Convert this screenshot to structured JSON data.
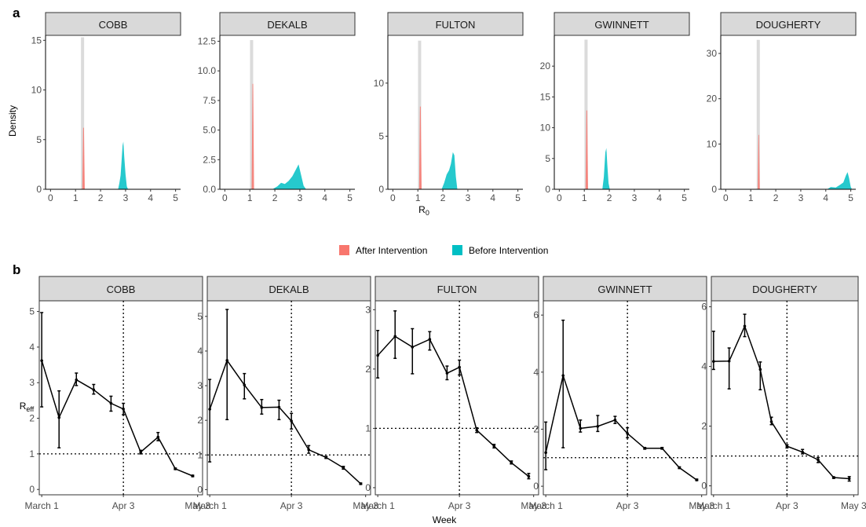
{
  "figure": {
    "panel_a_label": "a",
    "panel_b_label": "b",
    "legend": [
      {
        "label": "After Intervention",
        "color": "#F8766D"
      },
      {
        "label": "Before Intervention",
        "color": "#00BFC4"
      }
    ]
  },
  "chart_data": [
    {
      "type": "area",
      "panel": "a",
      "ylabel": "Density",
      "xlabel": "R0",
      "xlim": [
        -0.2,
        5.2
      ],
      "xticks": [
        0,
        1,
        2,
        3,
        4,
        5
      ],
      "series_names": [
        "After Intervention",
        "Before Intervention"
      ],
      "facets": [
        {
          "name": "COBB",
          "ylim": [
            0,
            15.5
          ],
          "yticks": [
            0,
            5,
            10,
            15
          ],
          "after": {
            "peak_x": 1.32,
            "peak_y": 6.2,
            "half_width": 0.05
          },
          "gray": {
            "peak_x": 1.28,
            "peak_y": 15.3
          },
          "before": [
            [
              2.7,
              0
            ],
            [
              2.75,
              0.6
            ],
            [
              2.8,
              1.4
            ],
            [
              2.84,
              2.8
            ],
            [
              2.88,
              4.4
            ],
            [
              2.91,
              4.8
            ],
            [
              2.95,
              3.2
            ],
            [
              3.0,
              1.5
            ],
            [
              3.05,
              0.3
            ],
            [
              3.1,
              0
            ]
          ]
        },
        {
          "name": "DEKALB",
          "ylim": [
            0,
            13
          ],
          "yticks": [
            0,
            2.5,
            5.0,
            7.5,
            10.0,
            12.5
          ],
          "after": {
            "peak_x": 1.12,
            "peak_y": 8.9,
            "half_width": 0.05
          },
          "gray": {
            "peak_x": 1.07,
            "peak_y": 12.6
          },
          "before": [
            [
              1.9,
              0
            ],
            [
              2.1,
              0.25
            ],
            [
              2.25,
              0.55
            ],
            [
              2.4,
              0.45
            ],
            [
              2.55,
              0.7
            ],
            [
              2.7,
              1.1
            ],
            [
              2.85,
              1.7
            ],
            [
              2.95,
              2.1
            ],
            [
              3.05,
              1.2
            ],
            [
              3.15,
              0.3
            ],
            [
              3.25,
              0
            ]
          ]
        },
        {
          "name": "FULTON",
          "ylim": [
            0,
            14.5
          ],
          "yticks": [
            0,
            5,
            10
          ],
          "after": {
            "peak_x": 1.1,
            "peak_y": 7.8,
            "half_width": 0.05
          },
          "gray": {
            "peak_x": 1.07,
            "peak_y": 14.0
          },
          "before": [
            [
              1.95,
              0
            ],
            [
              2.05,
              0.6
            ],
            [
              2.15,
              1.4
            ],
            [
              2.25,
              1.8
            ],
            [
              2.32,
              2.4
            ],
            [
              2.4,
              3.5
            ],
            [
              2.46,
              3.2
            ],
            [
              2.52,
              1.2
            ],
            [
              2.58,
              0
            ]
          ]
        },
        {
          "name": "GWINNETT",
          "ylim": [
            0,
            25
          ],
          "yticks": [
            0,
            5,
            10,
            15,
            20
          ],
          "after": {
            "peak_x": 1.1,
            "peak_y": 12.8,
            "half_width": 0.05
          },
          "gray": {
            "peak_x": 1.07,
            "peak_y": 24.3
          },
          "before": [
            [
              1.72,
              0
            ],
            [
              1.78,
              2.0
            ],
            [
              1.84,
              6.0
            ],
            [
              1.88,
              6.7
            ],
            [
              1.92,
              4.0
            ],
            [
              1.97,
              1.0
            ],
            [
              2.02,
              0
            ]
          ]
        },
        {
          "name": "DOUGHERTY",
          "ylim": [
            0,
            34
          ],
          "yticks": [
            0,
            10,
            20,
            30
          ],
          "after": {
            "peak_x": 1.32,
            "peak_y": 12.0,
            "half_width": 0.04
          },
          "gray": {
            "peak_x": 1.3,
            "peak_y": 33.0
          },
          "before": [
            [
              4.05,
              0
            ],
            [
              4.2,
              0.5
            ],
            [
              4.4,
              0.4
            ],
            [
              4.55,
              0.9
            ],
            [
              4.7,
              1.5
            ],
            [
              4.8,
              3.0
            ],
            [
              4.87,
              3.8
            ],
            [
              4.93,
              2.5
            ],
            [
              5.0,
              0.5
            ],
            [
              5.05,
              0
            ]
          ]
        }
      ]
    },
    {
      "type": "line",
      "panel": "b",
      "ylabel": "Reff",
      "xlabel": "Week",
      "xtick_labels": [
        "March 1",
        "Apr 3",
        "May 3"
      ],
      "xlim": [
        -1,
        65
      ],
      "xtick_positions": [
        0,
        33,
        63
      ],
      "vline": "Apr 3",
      "hline": 1,
      "facets": [
        {
          "name": "COBB",
          "ylim": [
            -0.15,
            5.3
          ],
          "yticks": [
            0,
            1,
            2,
            3,
            4,
            5
          ],
          "points": [
            {
              "x": 0,
              "y": 3.62,
              "lo": 2.32,
              "hi": 4.97
            },
            {
              "x": 7,
              "y": 2.02,
              "lo": 1.17,
              "hi": 2.77
            },
            {
              "x": 14,
              "y": 3.08,
              "lo": 2.92,
              "hi": 3.27
            },
            {
              "x": 21,
              "y": 2.8,
              "lo": 2.68,
              "hi": 2.95
            },
            {
              "x": 28,
              "y": 2.42,
              "lo": 2.2,
              "hi": 2.62
            },
            {
              "x": 33,
              "y": 2.26,
              "lo": 2.1,
              "hi": 2.42
            },
            {
              "x": 40,
              "y": 1.05,
              "lo": 1.0,
              "hi": 1.1
            },
            {
              "x": 47,
              "y": 1.47,
              "lo": 1.37,
              "hi": 1.6
            },
            {
              "x": 54,
              "y": 0.58,
              "lo": 0.56,
              "hi": 0.6
            },
            {
              "x": 61,
              "y": 0.38,
              "lo": 0.36,
              "hi": 0.4
            }
          ]
        },
        {
          "name": "DEKALB",
          "ylim": [
            -0.15,
            5.45
          ],
          "yticks": [
            0,
            1,
            2,
            3,
            4,
            5
          ],
          "points": [
            {
              "x": 0,
              "y": 2.32,
              "lo": 0.8,
              "hi": 3.18
            },
            {
              "x": 7,
              "y": 3.73,
              "lo": 2.02,
              "hi": 5.2
            },
            {
              "x": 14,
              "y": 3.02,
              "lo": 2.62,
              "hi": 3.35
            },
            {
              "x": 21,
              "y": 2.37,
              "lo": 2.18,
              "hi": 2.6
            },
            {
              "x": 28,
              "y": 2.38,
              "lo": 2.02,
              "hi": 2.58
            },
            {
              "x": 33,
              "y": 1.98,
              "lo": 1.75,
              "hi": 2.2
            },
            {
              "x": 40,
              "y": 1.15,
              "lo": 1.05,
              "hi": 1.27
            },
            {
              "x": 47,
              "y": 0.93,
              "lo": 0.9,
              "hi": 0.96
            },
            {
              "x": 54,
              "y": 0.63,
              "lo": 0.59,
              "hi": 0.67
            },
            {
              "x": 61,
              "y": 0.17,
              "lo": 0.15,
              "hi": 0.19
            }
          ]
        },
        {
          "name": "FULTON",
          "ylim": [
            -0.12,
            3.15
          ],
          "yticks": [
            0,
            1,
            2,
            3
          ],
          "points": [
            {
              "x": 0,
              "y": 2.23,
              "lo": 1.85,
              "hi": 2.65
            },
            {
              "x": 7,
              "y": 2.55,
              "lo": 2.18,
              "hi": 2.98
            },
            {
              "x": 14,
              "y": 2.37,
              "lo": 1.92,
              "hi": 2.68
            },
            {
              "x": 21,
              "y": 2.5,
              "lo": 2.32,
              "hi": 2.63
            },
            {
              "x": 28,
              "y": 1.93,
              "lo": 1.82,
              "hi": 2.05
            },
            {
              "x": 33,
              "y": 2.03,
              "lo": 1.9,
              "hi": 2.15
            },
            {
              "x": 40,
              "y": 0.97,
              "lo": 0.93,
              "hi": 1.01
            },
            {
              "x": 47,
              "y": 0.7,
              "lo": 0.67,
              "hi": 0.73
            },
            {
              "x": 54,
              "y": 0.42,
              "lo": 0.4,
              "hi": 0.45
            },
            {
              "x": 61,
              "y": 0.19,
              "lo": 0.15,
              "hi": 0.24
            }
          ]
        },
        {
          "name": "GWINNETT",
          "ylim": [
            -0.3,
            6.5
          ],
          "yticks": [
            0,
            2,
            4,
            6
          ],
          "points": [
            {
              "x": 0,
              "y": 1.18,
              "lo": 0.58,
              "hi": 2.25
            },
            {
              "x": 7,
              "y": 3.88,
              "lo": 1.35,
              "hi": 5.82
            },
            {
              "x": 14,
              "y": 2.03,
              "lo": 1.9,
              "hi": 2.32
            },
            {
              "x": 21,
              "y": 2.1,
              "lo": 1.92,
              "hi": 2.48
            },
            {
              "x": 28,
              "y": 2.32,
              "lo": 2.2,
              "hi": 2.45
            },
            {
              "x": 33,
              "y": 1.85,
              "lo": 1.7,
              "hi": 2.05
            },
            {
              "x": 40,
              "y": 1.33,
              "lo": 1.3,
              "hi": 1.36
            },
            {
              "x": 47,
              "y": 1.33,
              "lo": 1.3,
              "hi": 1.36
            },
            {
              "x": 54,
              "y": 0.65,
              "lo": 0.62,
              "hi": 0.68
            },
            {
              "x": 61,
              "y": 0.22,
              "lo": 0.2,
              "hi": 0.25
            }
          ]
        },
        {
          "name": "DOUGHERTY",
          "ylim": [
            -0.3,
            6.2
          ],
          "yticks": [
            0,
            2,
            4,
            6
          ],
          "points": [
            {
              "x": 0,
              "y": 4.17,
              "lo": 3.9,
              "hi": 5.18
            },
            {
              "x": 7,
              "y": 4.18,
              "lo": 3.25,
              "hi": 4.62
            },
            {
              "x": 14,
              "y": 5.35,
              "lo": 5.0,
              "hi": 5.75
            },
            {
              "x": 21,
              "y": 3.9,
              "lo": 3.22,
              "hi": 4.15
            },
            {
              "x": 26,
              "y": 2.15,
              "lo": 2.05,
              "hi": 2.3
            },
            {
              "x": 33,
              "y": 1.33,
              "lo": 1.27,
              "hi": 1.38
            },
            {
              "x": 40,
              "y": 1.13,
              "lo": 1.07,
              "hi": 1.22
            },
            {
              "x": 47,
              "y": 0.87,
              "lo": 0.78,
              "hi": 0.95
            },
            {
              "x": 54,
              "y": 0.28,
              "lo": 0.25,
              "hi": 0.3
            },
            {
              "x": 61,
              "y": 0.24,
              "lo": 0.16,
              "hi": 0.31
            }
          ]
        }
      ]
    }
  ]
}
